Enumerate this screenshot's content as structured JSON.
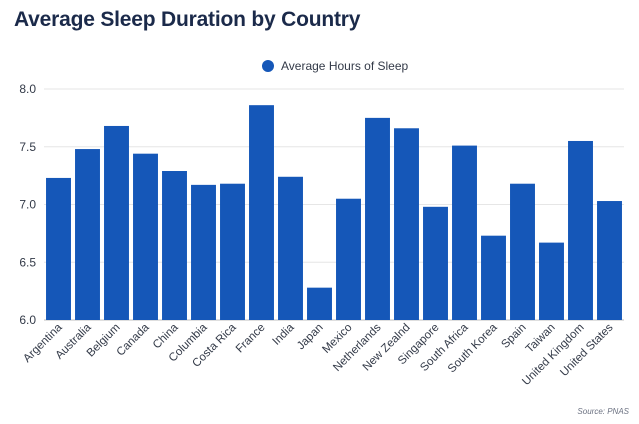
{
  "title": "Average Sleep Duration by Country",
  "source": "Source: PNAS",
  "colors": {
    "bar": "#1557b8",
    "grid": "#e6e6e6",
    "axis": "#bdbdbd"
  },
  "chart_data": {
    "type": "bar",
    "title": "Average Sleep Duration by Country",
    "xlabel": "",
    "ylabel": "",
    "categories": [
      "Argentina",
      "Australia",
      "Belgium",
      "Canada",
      "China",
      "Columbia",
      "Costa Rica",
      "France",
      "India",
      "Japan",
      "Mexico",
      "Netherlands",
      "New Zealnd",
      "Singapore",
      "South Africa",
      "South Korea",
      "Spain",
      "Taiwan",
      "United Kingdom",
      "United States"
    ],
    "series": [
      {
        "name": "Average Hours of Sleep",
        "values": [
          7.23,
          7.48,
          7.68,
          7.44,
          7.29,
          7.17,
          7.18,
          7.86,
          7.24,
          6.28,
          7.05,
          7.75,
          7.66,
          6.98,
          7.51,
          6.73,
          7.18,
          6.67,
          7.55,
          7.03
        ]
      }
    ],
    "ylim": [
      6.0,
      8.0
    ],
    "yticks": [
      "6.0",
      "6.5",
      "7.0",
      "7.5",
      "8.0"
    ],
    "grid": true,
    "legend_position": "top-center"
  }
}
